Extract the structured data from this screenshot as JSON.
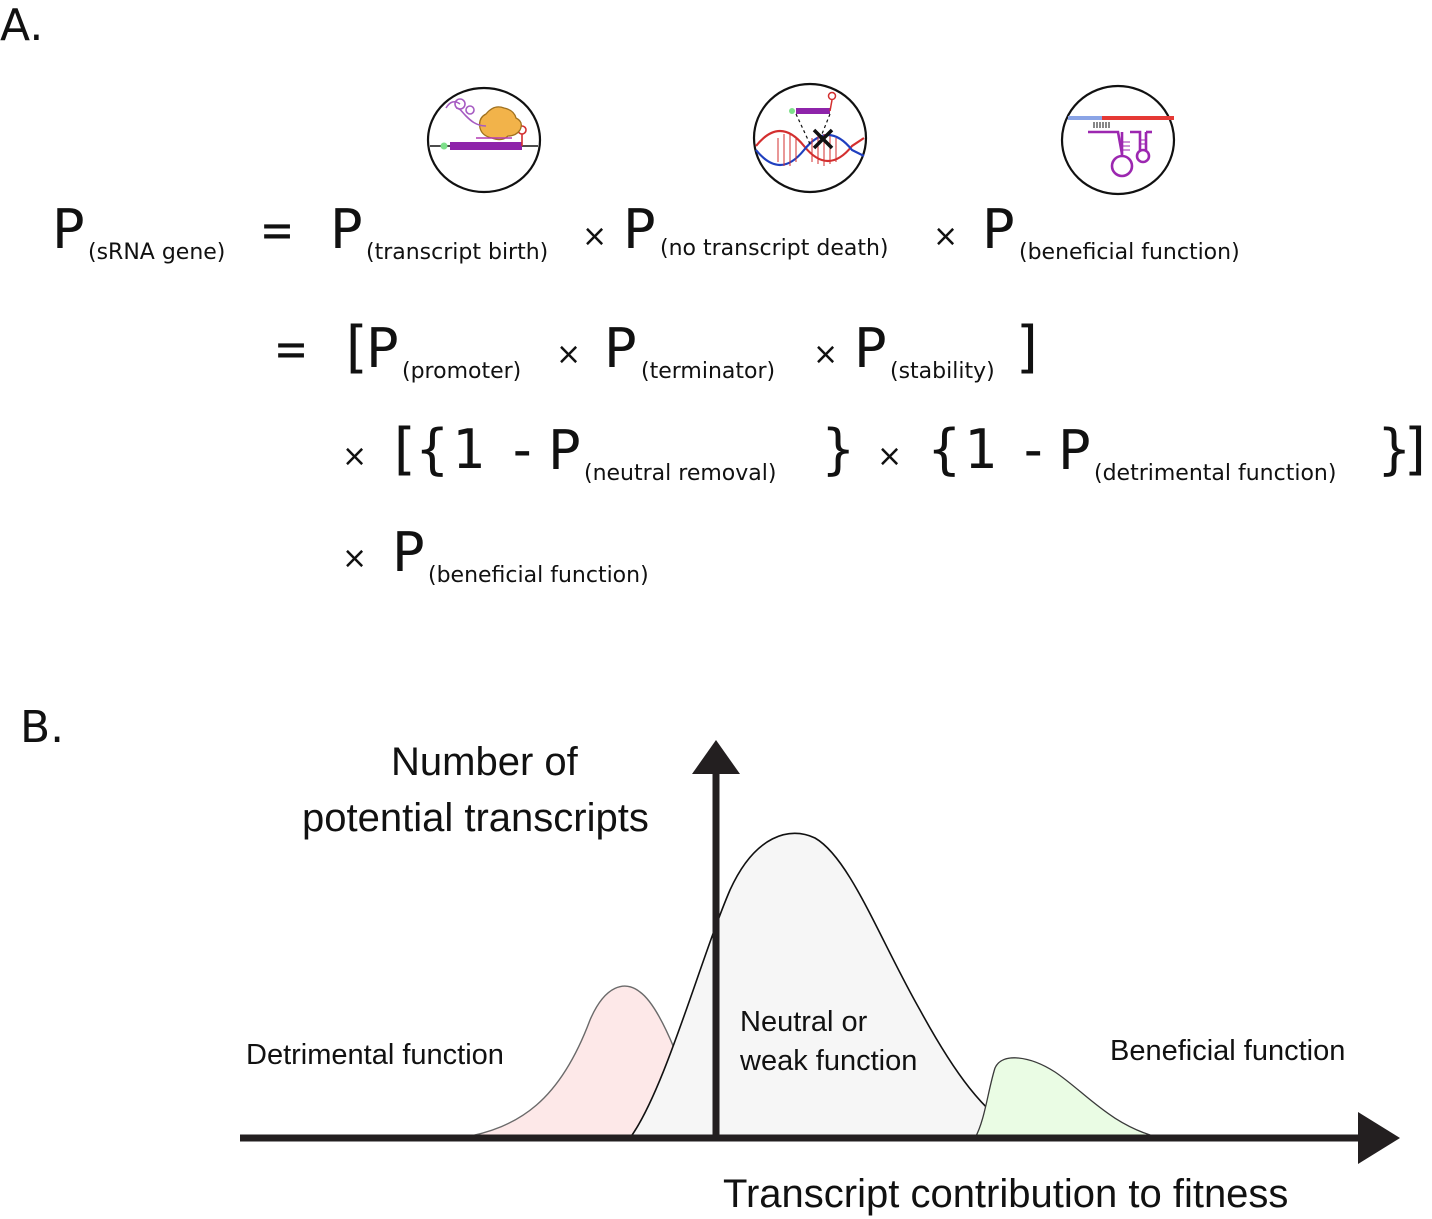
{
  "panel_a": {
    "label": "A.",
    "icons": [
      "transcription-icon",
      "transcript-death-icon",
      "beneficial-function-icon"
    ],
    "line1": {
      "lhs_p": "P",
      "lhs_sub": "(sRNA gene)",
      "equals": "=",
      "term1_p": "P",
      "term1_sub": "(transcript birth)",
      "times1": "×",
      "term2_p": "P",
      "term2_sub": "(no transcript death)",
      "times2": "×",
      "term3_p": "P",
      "term3_sub": "(beneficial function)"
    },
    "line2": {
      "equals": "=",
      "open_bracket": "[",
      "p1": "P",
      "sub1": "(promoter)",
      "times1": "×",
      "p2": "P",
      "sub2": "(terminator)",
      "times2": "×",
      "p3": "P",
      "sub3": "(stability)",
      "close_bracket": "]"
    },
    "line3": {
      "times_lead": "×",
      "open_bracket": "[",
      "open_brace1": "{",
      "one1": "1",
      "minus1": "-",
      "p1": "P",
      "sub1": "(neutral removal)",
      "close_brace1": "}",
      "times_mid": "×",
      "open_brace2": "{",
      "one2": "1",
      "minus2": "-",
      "p2": "P",
      "sub2": "(detrimental function)",
      "close_brace2": "}",
      "close_bracket": "]"
    },
    "line4": {
      "times_lead": "×",
      "p": "P",
      "sub": "(beneficial function)"
    }
  },
  "panel_b": {
    "label": "B.",
    "y_axis_label_line1": "Number of",
    "y_axis_label_line2": "potential transcripts",
    "x_axis_label": "Transcript contribution to fitness",
    "distributions": [
      {
        "label": "Detrimental function",
        "color": "#fde8e8"
      },
      {
        "label_line1": "Neutral or",
        "label_line2": "weak function",
        "color": "#f6f6f6"
      },
      {
        "label": "Beneficial function",
        "color": "#eafce4"
      }
    ],
    "axis_color": "#231f20"
  }
}
